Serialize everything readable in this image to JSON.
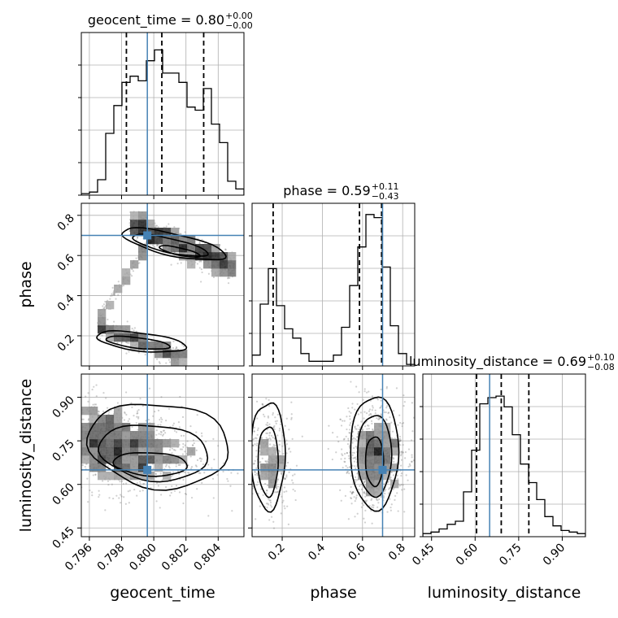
{
  "chart_data": {
    "type": "corner",
    "parameters": [
      "geocent_time",
      "phase",
      "luminosity_distance"
    ],
    "ranges": {
      "geocent_time": [
        0.7955,
        0.8056
      ],
      "phase": [
        0.05,
        0.86
      ],
      "luminosity_distance": [
        0.42,
        0.98
      ]
    },
    "truths": {
      "geocent_time": 0.7996,
      "phase": 0.7,
      "luminosity_distance": 0.65
    },
    "colors": {
      "truth": "#4682b4",
      "hist": "#000000",
      "grid": "#b0b0b0"
    },
    "grid": true,
    "titles": [
      {
        "param": "geocent_time",
        "main": "geocent_time = 0.80",
        "sup": "+0.00",
        "sub": "−0.00"
      },
      {
        "param": "phase",
        "main": "phase = 0.59",
        "sup": "+0.11",
        "sub": "−0.43"
      },
      {
        "param": "luminosity_distance",
        "main": "luminosity_distance = 0.69",
        "sup": "+0.10",
        "sub": "−0.08"
      }
    ],
    "axis_labels": {
      "geocent_time": "geocent_time",
      "phase": "phase",
      "luminosity_distance": "luminosity_distance"
    },
    "ticks": {
      "geocent_time": {
        "values": [
          0.796,
          0.798,
          0.8,
          0.802,
          0.804
        ],
        "labels": [
          "0.796",
          "0.798",
          "0.800",
          "0.802",
          "0.804"
        ]
      },
      "phase": {
        "values": [
          0.2,
          0.4,
          0.6,
          0.8
        ],
        "labels": [
          "0.2",
          "0.4",
          "0.6",
          "0.8"
        ]
      },
      "luminosity_distance": {
        "values": [
          0.45,
          0.6,
          0.75,
          0.9
        ],
        "labels": [
          "0.45",
          "0.60",
          "0.75",
          "0.90"
        ]
      }
    },
    "quantiles": {
      "geocent_time": [
        0.7983,
        0.8005,
        0.8031
      ],
      "phase": [
        0.155,
        0.585,
        0.695
      ],
      "luminosity_distance": [
        0.605,
        0.69,
        0.785
      ]
    },
    "histograms": {
      "geocent_time": [
        0.01,
        0.02,
        0.1,
        0.4,
        0.58,
        0.73,
        0.77,
        0.74,
        0.87,
        0.94,
        0.79,
        0.79,
        0.73,
        0.57,
        0.55,
        0.69,
        0.46,
        0.34,
        0.09,
        0.04
      ],
      "phase": [
        0.07,
        0.4,
        0.63,
        0.39,
        0.24,
        0.18,
        0.08,
        0.03,
        0.03,
        0.03,
        0.07,
        0.25,
        0.52,
        0.77,
        0.98,
        0.96,
        0.64,
        0.26,
        0.08,
        0.01
      ],
      "luminosity_distance": [
        0.02,
        0.03,
        0.05,
        0.08,
        0.1,
        0.29,
        0.56,
        0.86,
        0.9,
        0.91,
        0.84,
        0.66,
        0.47,
        0.35,
        0.24,
        0.13,
        0.07,
        0.04,
        0.03,
        0.02
      ]
    }
  }
}
